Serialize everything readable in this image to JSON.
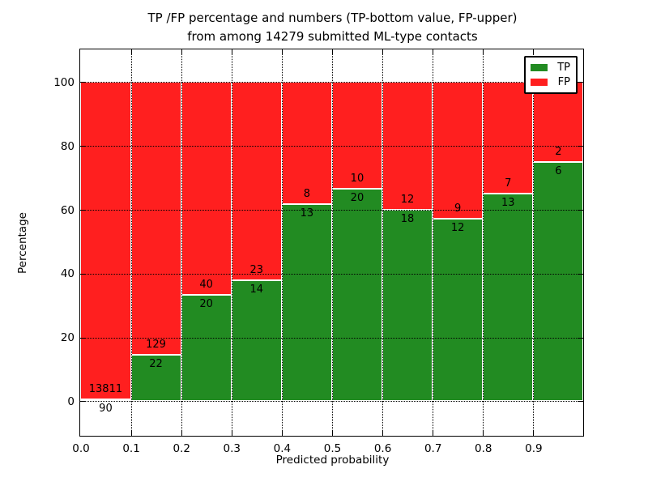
{
  "chart_data": {
    "type": "bar",
    "stacked": true,
    "title_line1": "TP /FP percentage and numbers (TP-bottom value, FP-upper)",
    "title_line2": "from among 14279 submitted ML-type contacts",
    "xlabel": "Predicted probability",
    "ylabel": "Percentage",
    "x_tick_labels": [
      "0.0",
      "0.1",
      "0.2",
      "0.3",
      "0.4",
      "0.5",
      "0.6",
      "0.7",
      "0.8",
      "0.9"
    ],
    "y_ticks": [
      0,
      20,
      40,
      60,
      80,
      100
    ],
    "xlim": [
      0.0,
      1.0
    ],
    "grid": "dotted",
    "colors": {
      "tp": "#228b22",
      "fp": "#ff1f1f",
      "edge": "#ffffff"
    },
    "legend": {
      "position": "upper right",
      "items": [
        {
          "label": "TP",
          "color": "#228b22"
        },
        {
          "label": "FP",
          "color": "#ff1f1f"
        }
      ]
    },
    "bins": [
      {
        "range": "0.0-0.1",
        "tp": 90,
        "fp": 13811,
        "tp_pct": 0.65
      },
      {
        "range": "0.1-0.2",
        "tp": 22,
        "fp": 129,
        "tp_pct": 14.57
      },
      {
        "range": "0.2-0.3",
        "tp": 20,
        "fp": 40,
        "tp_pct": 33.33
      },
      {
        "range": "0.3-0.4",
        "tp": 14,
        "fp": 23,
        "tp_pct": 37.84
      },
      {
        "range": "0.4-0.5",
        "tp": 13,
        "fp": 8,
        "tp_pct": 61.9
      },
      {
        "range": "0.5-0.6",
        "tp": 20,
        "fp": 10,
        "tp_pct": 66.67
      },
      {
        "range": "0.6-0.7",
        "tp": 18,
        "fp": 12,
        "tp_pct": 60.0
      },
      {
        "range": "0.7-0.8",
        "tp": 12,
        "fp": 9,
        "tp_pct": 57.14
      },
      {
        "range": "0.8-0.9",
        "tp": 13,
        "fp": 7,
        "tp_pct": 65.0
      },
      {
        "range": "0.9-1.0",
        "tp": 6,
        "fp": 2,
        "tp_pct": 75.0
      }
    ]
  }
}
